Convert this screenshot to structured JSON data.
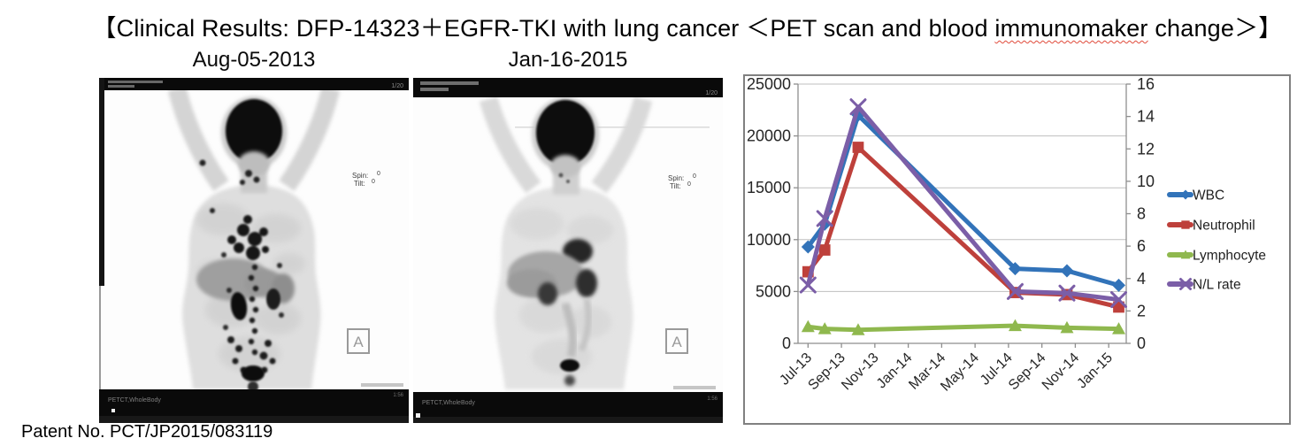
{
  "title": {
    "prefix": "【Clinical Results: DFP-14323＋EGFR-TKI with lung cancer ＜PET scan and blood ",
    "misspelled_word": "immunomaker",
    "suffix": " change＞】"
  },
  "footer": {
    "patent": "Patent No. PCT/JP2015/083119"
  },
  "scans": [
    {
      "date_label": "Aug-05-2013",
      "overlay": {
        "spin_label": "Spin:",
        "spin_value": "0",
        "tilt_label": "Tilt:",
        "tilt_value": "0",
        "orientation_marker": "A",
        "modality": "PETCT,WholeBody",
        "frame": "1/20",
        "time": "1:56"
      }
    },
    {
      "date_label": "Jan-16-2015",
      "overlay": {
        "spin_label": "Spin:",
        "spin_value": "0",
        "tilt_label": "Tilt:",
        "tilt_value": "0",
        "orientation_marker": "A",
        "modality": "PETCT,WholeBody",
        "frame": "1/20",
        "time": "1:56"
      }
    }
  ],
  "chart_data": {
    "type": "line",
    "title": "",
    "grid": true,
    "legend_position": "right",
    "colors": {
      "axis": "#8e8e8e",
      "gridline": "#bfbfbf",
      "border": "#808080",
      "tick_text": "#262626",
      "legend_text": "#1f1f1f"
    },
    "left_axis": {
      "min": 0,
      "max": 25000,
      "step": 5000,
      "ticks": [
        0,
        5000,
        10000,
        15000,
        20000,
        25000
      ]
    },
    "right_axis": {
      "min": 0,
      "max": 16,
      "step": 2,
      "ticks": [
        0,
        2,
        4,
        6,
        8,
        10,
        12,
        14,
        16
      ]
    },
    "x_axis": {
      "range_months": [
        -0.6,
        19.05
      ],
      "tick_months": [
        0,
        2,
        4,
        6,
        8,
        10,
        12,
        14,
        16,
        18
      ],
      "tick_labels": [
        "Jul-13",
        "Sep-13",
        "Nov-13",
        "Jan-14",
        "Mar-14",
        "May-14",
        "Jul-14",
        "Sep-14",
        "Nov-14",
        "Jan-15"
      ]
    },
    "x_months": [
      0,
      1,
      3,
      12.4,
      15.5,
      18.6
    ],
    "x_point_labels": [
      "Jul-13",
      "Aug-13",
      "Oct-13",
      "Jul-14",
      "Oct-14",
      "Jan-15"
    ],
    "series": [
      {
        "name": "WBC",
        "axis": "left",
        "color": "#3273B9",
        "marker": "diamond",
        "values": [
          9300,
          11500,
          22000,
          7200,
          7000,
          5600
        ]
      },
      {
        "name": "Neutrophil",
        "axis": "left",
        "color": "#BE403B",
        "marker": "square",
        "values": [
          6900,
          9000,
          18900,
          4900,
          4700,
          3500
        ]
      },
      {
        "name": "Lymphocyte",
        "axis": "left",
        "color": "#8FB84E",
        "marker": "triangle",
        "values": [
          1600,
          1400,
          1300,
          1700,
          1500,
          1400
        ]
      },
      {
        "name": "N/L rate",
        "axis": "right",
        "color": "#7B5EA7",
        "marker": "x",
        "values": [
          3.6,
          7.7,
          14.6,
          3.2,
          3.1,
          2.7
        ]
      }
    ]
  }
}
